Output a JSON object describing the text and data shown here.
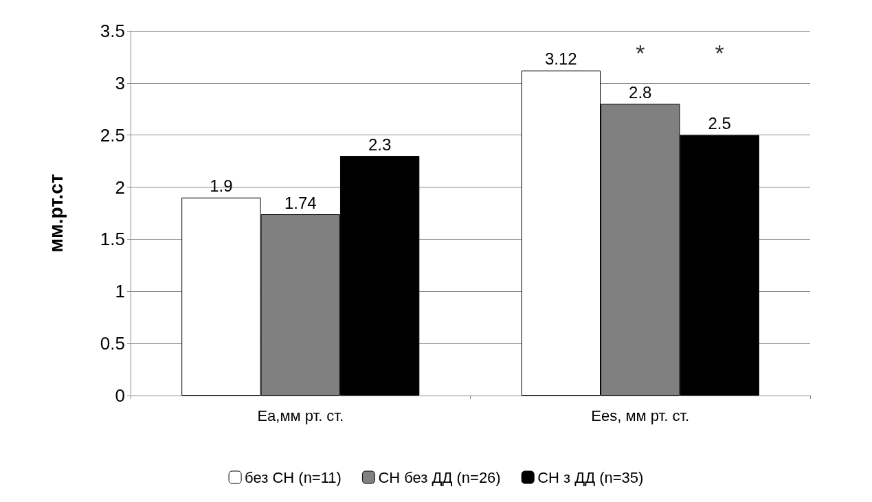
{
  "chart_data": {
    "type": "bar",
    "ylabel": "мм.рт.ст",
    "categories": [
      "Ea,мм рт. ст.",
      "Ees, мм рт. ст."
    ],
    "series": [
      {
        "name": "без СН (n=11)",
        "color": "#ffffff",
        "values": [
          1.9,
          3.12
        ]
      },
      {
        "name": "СН без ДД (n=26)",
        "color": "#808080",
        "values": [
          1.74,
          2.8
        ]
      },
      {
        "name": "СН з ДД (n=35)",
        "color": "#000000",
        "values": [
          2.3,
          2.5
        ]
      }
    ],
    "ylim": [
      0,
      3.5
    ],
    "yticks": [
      0,
      0.5,
      1,
      1.5,
      2,
      2.5,
      3,
      3.5
    ],
    "grid": "y",
    "legend": "bottom",
    "data_labels": true,
    "annotations": [
      "*",
      "*"
    ]
  }
}
